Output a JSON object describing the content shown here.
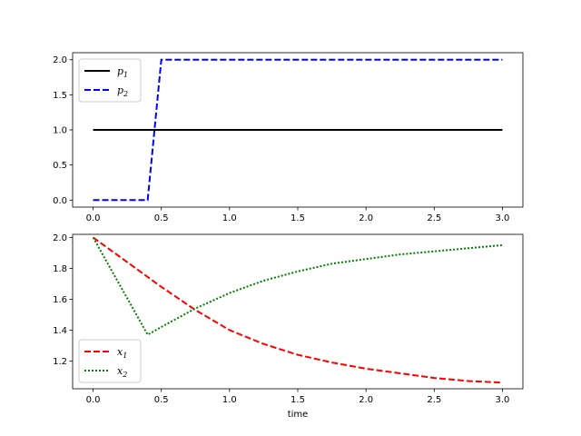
{
  "chart_data": [
    {
      "type": "line",
      "title": "",
      "xlabel": "",
      "ylabel": "",
      "xlim": [
        -0.15,
        3.15
      ],
      "ylim": [
        -0.1,
        2.1
      ],
      "xticks": [
        0.0,
        0.5,
        1.0,
        1.5,
        2.0,
        2.5,
        3.0
      ],
      "xtick_labels": [
        "0.0",
        "0.5",
        "1.0",
        "1.5",
        "2.0",
        "2.5",
        "3.0"
      ],
      "yticks": [
        0.0,
        0.5,
        1.0,
        1.5,
        2.0
      ],
      "ytick_labels": [
        "0.0",
        "0.5",
        "1.0",
        "1.5",
        "2.0"
      ],
      "grid": false,
      "legend_position": "top-left",
      "series": [
        {
          "name": "p",
          "subscript": "1",
          "color": "#000000",
          "style": "solid",
          "x": [
            0.0,
            3.0
          ],
          "y": [
            1.0,
            1.0
          ]
        },
        {
          "name": "p",
          "subscript": "2",
          "color": "#0000ff",
          "style": "dashed",
          "x": [
            0.0,
            0.4,
            0.5,
            3.0
          ],
          "y": [
            0.0,
            0.0,
            2.0,
            2.0
          ]
        }
      ]
    },
    {
      "type": "line",
      "title": "",
      "xlabel": "time",
      "ylabel": "",
      "xlim": [
        -0.15,
        3.15
      ],
      "ylim": [
        1.02,
        2.02
      ],
      "xticks": [
        0.0,
        0.5,
        1.0,
        1.5,
        2.0,
        2.5,
        3.0
      ],
      "xtick_labels": [
        "0.0",
        "0.5",
        "1.0",
        "1.5",
        "2.0",
        "2.5",
        "3.0"
      ],
      "yticks": [
        1.2,
        1.4,
        1.6,
        1.8,
        2.0
      ],
      "ytick_labels": [
        "1.2",
        "1.4",
        "1.6",
        "1.8",
        "2.0"
      ],
      "grid": false,
      "legend_position": "bottom-left",
      "series": [
        {
          "name": "x",
          "subscript": "1",
          "color": "#ff0000",
          "style": "dashed",
          "x": [
            0.0,
            0.25,
            0.5,
            0.75,
            1.0,
            1.25,
            1.5,
            1.75,
            2.0,
            2.25,
            2.5,
            2.75,
            3.0
          ],
          "y": [
            2.0,
            1.84,
            1.68,
            1.53,
            1.4,
            1.31,
            1.24,
            1.19,
            1.15,
            1.12,
            1.09,
            1.07,
            1.06
          ]
        },
        {
          "name": "x",
          "subscript": "2",
          "color": "#008000",
          "style": "dotted",
          "x": [
            0.0,
            0.4,
            0.5,
            0.75,
            1.0,
            1.25,
            1.5,
            1.75,
            2.0,
            2.25,
            2.5,
            2.75,
            3.0
          ],
          "y": [
            2.0,
            1.37,
            1.42,
            1.54,
            1.64,
            1.72,
            1.78,
            1.83,
            1.86,
            1.89,
            1.91,
            1.93,
            1.95
          ]
        }
      ]
    }
  ]
}
